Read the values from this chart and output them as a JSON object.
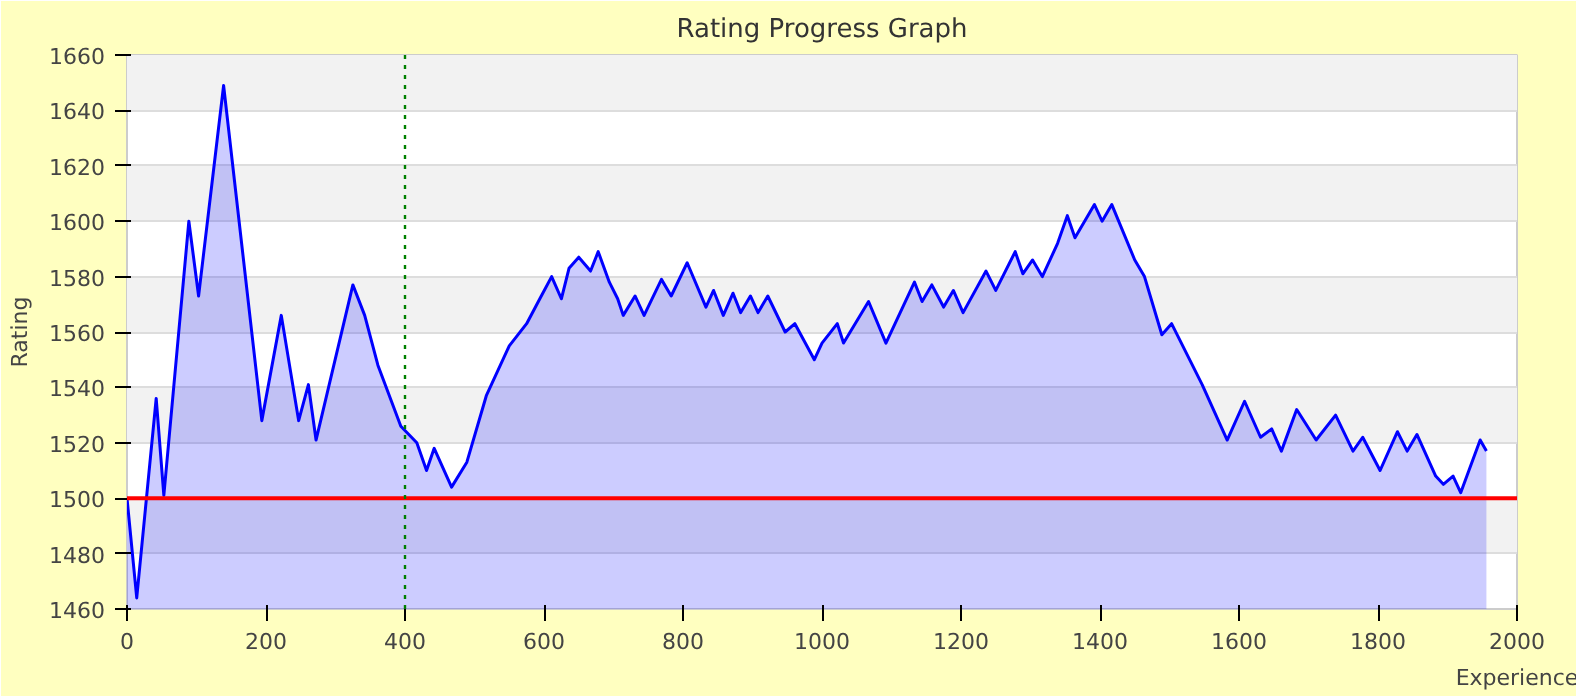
{
  "chart_data": {
    "type": "area",
    "title": "Rating Progress Graph",
    "xlabel": "Experience",
    "ylabel": "Rating",
    "xlim": [
      0,
      2000
    ],
    "ylim": [
      1460,
      1660
    ],
    "xticks": [
      0,
      200,
      400,
      600,
      800,
      1000,
      1200,
      1400,
      1600,
      1800,
      2000
    ],
    "yticks": [
      1460,
      1480,
      1500,
      1520,
      1540,
      1560,
      1580,
      1600,
      1620,
      1640,
      1660
    ],
    "grid": "y",
    "marker": "none",
    "line_style": "solid",
    "series": [
      {
        "color": "#0000ff",
        "x": [
          0,
          14,
          42,
          53,
          89,
          103,
          139,
          194,
          222,
          247,
          261,
          272,
          325,
          342,
          361,
          394,
          417,
          431,
          442,
          467,
          489,
          517,
          550,
          575,
          594,
          611,
          625,
          636,
          650,
          667,
          678,
          694,
          706,
          714,
          731,
          744,
          769,
          783,
          806,
          833,
          844,
          858,
          872,
          883,
          897,
          908,
          922,
          947,
          961,
          989,
          1000,
          1022,
          1031,
          1067,
          1092,
          1133,
          1144,
          1158,
          1175,
          1189,
          1203,
          1236,
          1250,
          1278,
          1289,
          1303,
          1317,
          1339,
          1353,
          1364,
          1392,
          1403,
          1417,
          1450,
          1464,
          1489,
          1503,
          1547,
          1583,
          1608,
          1631,
          1647,
          1661,
          1683,
          1711,
          1739,
          1764,
          1778,
          1803,
          1828,
          1842,
          1856,
          1883,
          1894,
          1908,
          1919,
          1947,
          1956
        ],
        "values": [
          1500,
          1464,
          1536,
          1501,
          1600,
          1573,
          1649,
          1528,
          1566,
          1528,
          1541,
          1521,
          1577,
          1566,
          1548,
          1526,
          1520,
          1510,
          1518,
          1504,
          1513,
          1537,
          1555,
          1563,
          1572,
          1580,
          1572,
          1583,
          1587,
          1582,
          1589,
          1578,
          1572,
          1566,
          1573,
          1566,
          1579,
          1573,
          1585,
          1569,
          1575,
          1566,
          1574,
          1567,
          1573,
          1567,
          1573,
          1560,
          1563,
          1550,
          1556,
          1563,
          1556,
          1571,
          1556,
          1578,
          1571,
          1577,
          1569,
          1575,
          1567,
          1582,
          1575,
          1589,
          1581,
          1586,
          1580,
          1592,
          1602,
          1594,
          1606,
          1600,
          1606,
          1586,
          1580,
          1559,
          1563,
          1541,
          1521,
          1535,
          1522,
          1525,
          1517,
          1532,
          1521,
          1530,
          1517,
          1522,
          1510,
          1524,
          1517,
          1523,
          1508,
          1505,
          1508,
          1502,
          1521,
          1517
        ]
      }
    ],
    "ref_lines": [
      {
        "axis": "y",
        "value": 1500,
        "color": "#ff0000",
        "line_style": "solid"
      },
      {
        "axis": "x",
        "value": 400,
        "color": "#008000",
        "line_style": "dotted"
      }
    ]
  }
}
